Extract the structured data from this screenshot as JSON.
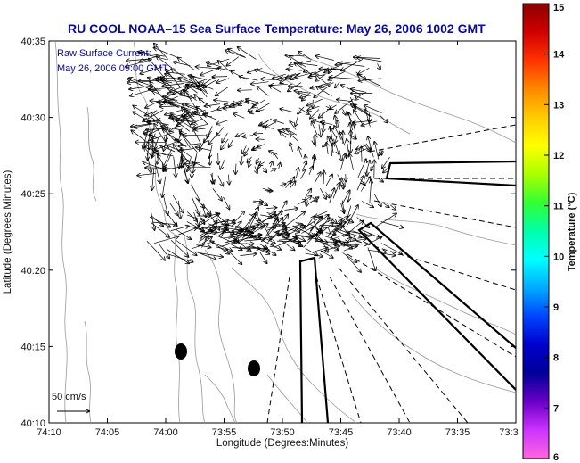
{
  "title": "RU COOL  NOAA–15  Sea Surface Temperature:  May 26, 2006 1002 GMT",
  "annotation": {
    "line1": "Raw Surface Current:",
    "line2": "May 26, 2006 09:00 GMT"
  },
  "scale": {
    "label": "50 cm/s"
  },
  "xaxis": {
    "label": "Longitude (Degrees:Minutes)",
    "ticks": [
      "74:10",
      "74:05",
      "74:00",
      "73:55",
      "73:50",
      "73:45",
      "73:40",
      "73:35",
      "73:3"
    ]
  },
  "yaxis": {
    "label": "Latitude (Degrees:Minutes)",
    "ticks": [
      "40:35",
      "40:30",
      "40:25",
      "40:20",
      "40:15",
      "40:10"
    ]
  },
  "colorbar": {
    "label": "Temperature (°C)",
    "ticks": [
      "15",
      "14",
      "13",
      "12",
      "11",
      "10",
      "9",
      "8",
      "7",
      "6"
    ],
    "colors": [
      "#8b0000",
      "#d00000",
      "#ff3300",
      "#ff8800",
      "#ffcc00",
      "#ffff00",
      "#aaff00",
      "#33ff33",
      "#00ffaa",
      "#00ffff",
      "#00aaff",
      "#0044ff",
      "#0000cc",
      "#000099",
      "#6a00c8",
      "#cc33ff",
      "#ff66dd"
    ]
  },
  "colors": {
    "title": "#0a0a9c",
    "land": "#ffffff",
    "contour": "#999999"
  }
}
